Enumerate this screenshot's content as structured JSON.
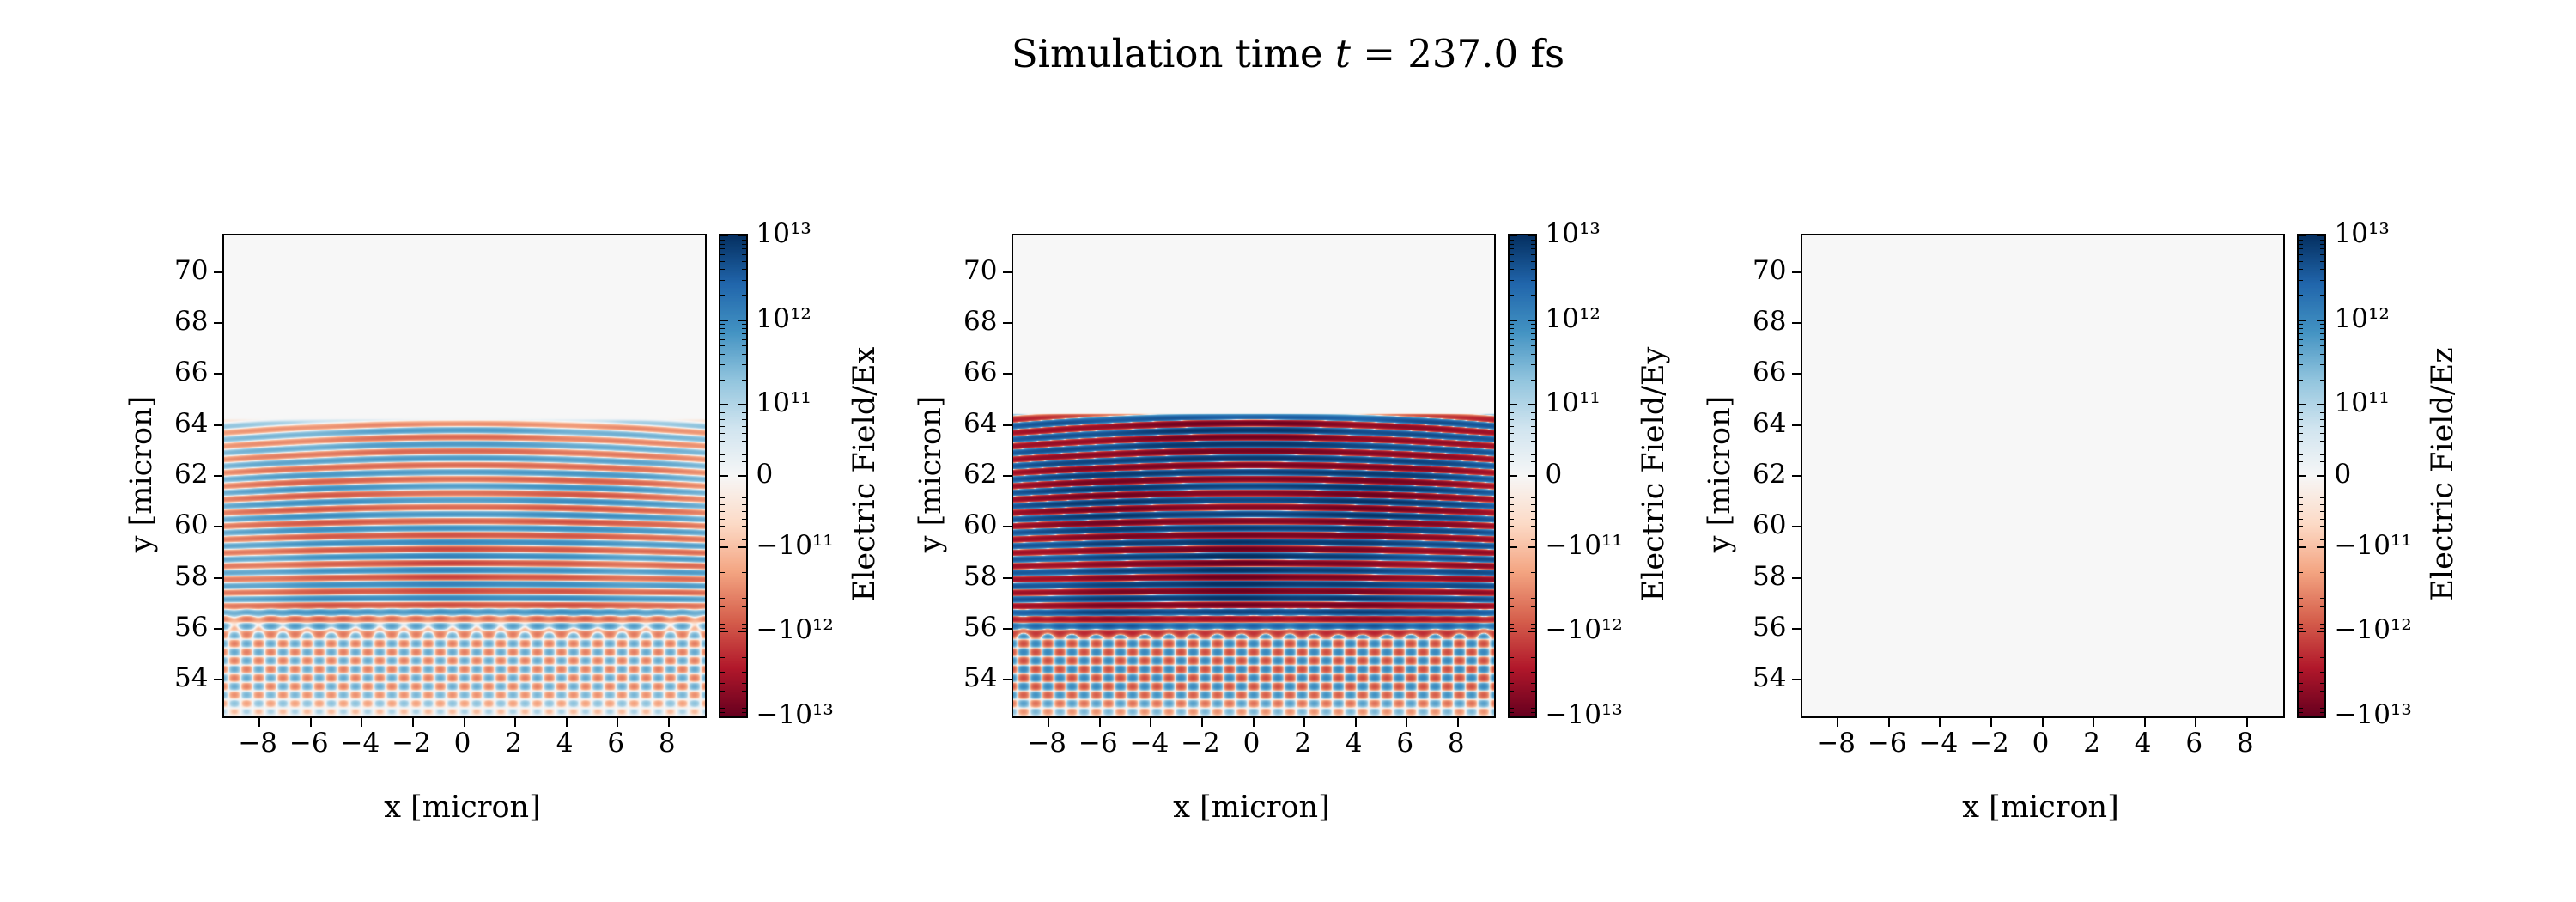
{
  "title": {
    "prefix": "Simulation time ",
    "variable": "t",
    "suffix": " = 237.0 fs"
  },
  "simulation_time_fs": 237.0,
  "chart_data": {
    "type": "heatmap",
    "figure_background": "#ffffff",
    "zero_field_color": "#f7f7f7",
    "common": {
      "xlabel": "x [micron]",
      "ylabel": "y [micron]",
      "xlim": [
        -9.4,
        9.4
      ],
      "ylim": [
        52.55,
        71.45
      ],
      "xticks": [
        -8,
        -6,
        -4,
        -2,
        0,
        2,
        4,
        6,
        8
      ],
      "xtick_labels": [
        "−8",
        "−6",
        "−4",
        "−2",
        "0",
        "2",
        "4",
        "6",
        "8"
      ],
      "yticks": [
        70,
        68,
        66,
        64,
        62,
        60,
        58,
        56,
        54
      ],
      "scale": "symlog",
      "linthresh": 100000000000.0,
      "vmin": -10000000000000.0,
      "vmax": 10000000000000.0,
      "cmap": "RdBu",
      "colorbar_ticks": [
        {
          "value": 10000000000000.0,
          "label": "10¹³"
        },
        {
          "value": 1000000000000.0,
          "label": "10¹²"
        },
        {
          "value": 100000000000.0,
          "label": "10¹¹"
        },
        {
          "value": 0,
          "label": "0"
        },
        {
          "value": -100000000000.0,
          "label": "−10¹¹"
        },
        {
          "value": -1000000000000.0,
          "label": "−10¹²"
        },
        {
          "value": -10000000000000.0,
          "label": "−10¹³"
        }
      ]
    },
    "panels": [
      {
        "name": "Ex",
        "colorbar_label": "Electric Field/Ex",
        "description": "Moderate-amplitude horizontal interference fringes for y below ~64 micron, fading toward the top of the band, with crossing diagonal wavefronts below y ~ 56 micron",
        "field": {
          "amplitude": 1200000000000.0,
          "fringe_period_micron": 0.55,
          "wave_top_y": 64.25,
          "beam_cross_y": 56.3,
          "lower_amp": 0.35,
          "top_fade": 0.9
        }
      },
      {
        "name": "Ey",
        "colorbar_label": "Electric Field/Ey",
        "description": "Strong saturated horizontal fringes (|Ey| up to ~10¹³) for y below ~64.5 micron, weaker crossing diagonal wavefronts below y ~ 56 micron",
        "field": {
          "amplitude": 10500000000000.0,
          "fringe_period_micron": 0.55,
          "wave_top_y": 64.45,
          "beam_cross_y": 56.3,
          "lower_amp": 0.1,
          "top_fade": 0.15
        }
      },
      {
        "name": "Ez",
        "colorbar_label": "Electric Field/Ez",
        "description": "Field approximately zero everywhere (uniform near-white background)",
        "field": {
          "amplitude": 0,
          "fringe_period_micron": 0.55,
          "wave_top_y": 64.25,
          "beam_cross_y": 56.3,
          "lower_amp": 0,
          "top_fade": 0
        }
      }
    ]
  }
}
